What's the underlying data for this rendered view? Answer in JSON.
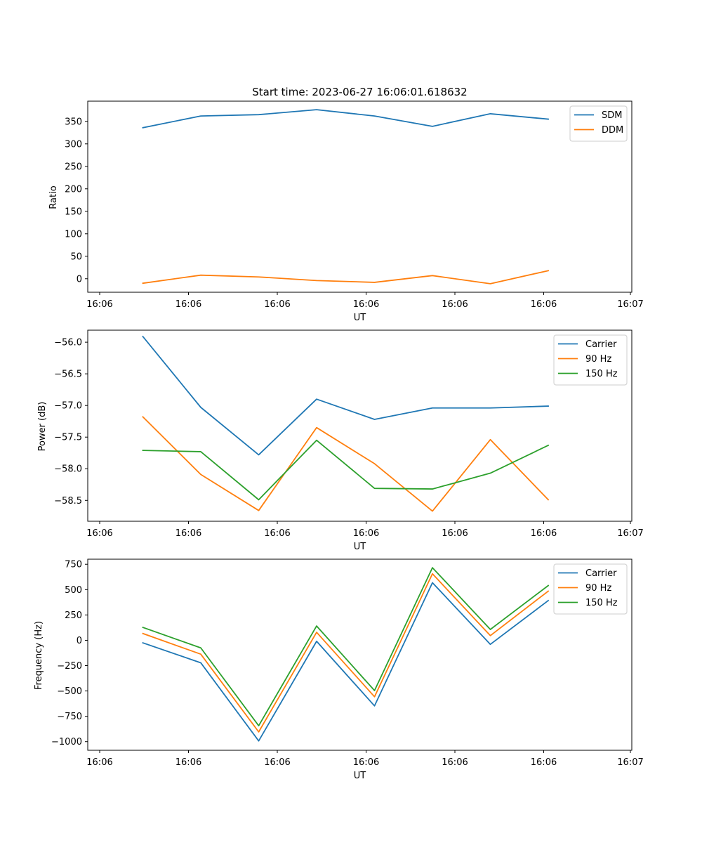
{
  "figure": {
    "title": "Start time: 2023-06-27 16:06:01.618632"
  },
  "colors": {
    "blue": "#1f77b4",
    "orange": "#ff7f0e",
    "green": "#2ca02c"
  },
  "chart_data": [
    {
      "type": "line",
      "xlabel": "UT",
      "ylabel": "Ratio",
      "x_ticklabels": [
        "16:06",
        "16:06",
        "16:06",
        "16:06",
        "16:06",
        "16:06",
        "16:07"
      ],
      "y_ticks": [
        0,
        50,
        100,
        150,
        200,
        250,
        300,
        350
      ],
      "ylim": [
        -30,
        395
      ],
      "grid": false,
      "legend": "upper right",
      "series": [
        {
          "name": "SDM",
          "color": "#1f77b4",
          "values": [
            336,
            362,
            365,
            376,
            362,
            339,
            367,
            355
          ]
        },
        {
          "name": "DDM",
          "color": "#ff7f0e",
          "values": [
            -10,
            8,
            4,
            -4,
            -8,
            7,
            -11,
            18
          ]
        }
      ]
    },
    {
      "type": "line",
      "xlabel": "UT",
      "ylabel": "Power (dB)",
      "x_ticklabels": [
        "16:06",
        "16:06",
        "16:06",
        "16:06",
        "16:06",
        "16:06",
        "16:07"
      ],
      "y_ticks": [
        -56.0,
        -56.5,
        -57.0,
        -57.5,
        -58.0,
        -58.5
      ],
      "ylim": [
        -58.83,
        -55.81
      ],
      "grid": false,
      "legend": "upper right",
      "series": [
        {
          "name": "Carrier",
          "color": "#1f77b4",
          "values": [
            -55.91,
            -57.03,
            -57.78,
            -56.9,
            -57.22,
            -57.04,
            -57.04,
            -57.01
          ]
        },
        {
          "name": "90 Hz",
          "color": "#ff7f0e",
          "values": [
            -57.18,
            -58.09,
            -58.66,
            -57.35,
            -57.92,
            -58.67,
            -57.54,
            -58.49
          ]
        },
        {
          "name": "150 Hz",
          "color": "#2ca02c",
          "values": [
            -57.71,
            -57.73,
            -58.49,
            -57.55,
            -58.31,
            -58.32,
            -58.07,
            -57.63
          ]
        }
      ]
    },
    {
      "type": "line",
      "xlabel": "UT",
      "ylabel": "Frequency (Hz)",
      "x_ticklabels": [
        "16:06",
        "16:06",
        "16:06",
        "16:06",
        "16:06",
        "16:06",
        "16:07"
      ],
      "y_ticks": [
        750,
        500,
        250,
        0,
        -250,
        -500,
        -750,
        -1000
      ],
      "ylim": [
        -1085,
        800
      ],
      "grid": false,
      "legend": "upper right",
      "series": [
        {
          "name": "Carrier",
          "color": "#1f77b4",
          "values": [
            -25,
            -222,
            -993,
            -10,
            -647,
            568,
            -40,
            392
          ]
        },
        {
          "name": "90 Hz",
          "color": "#ff7f0e",
          "values": [
            67,
            -137,
            -904,
            79,
            -557,
            656,
            46,
            485
          ]
        },
        {
          "name": "150 Hz",
          "color": "#2ca02c",
          "values": [
            127,
            -75,
            -843,
            141,
            -496,
            716,
            107,
            540
          ]
        }
      ]
    }
  ]
}
